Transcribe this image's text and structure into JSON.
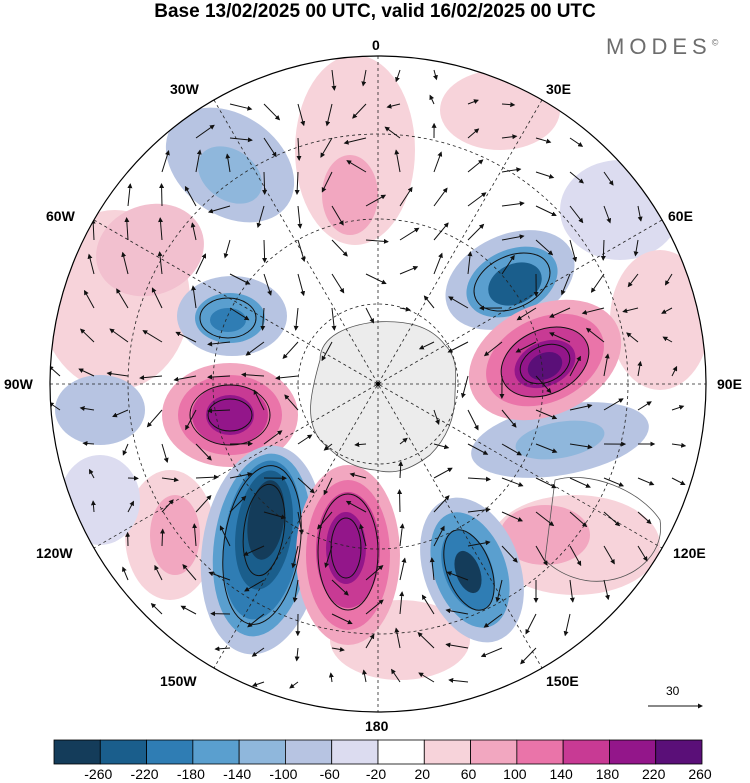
{
  "title": "Base 13/02/2025 00 UTC, valid 16/02/2025 00 UTC",
  "brand": "MODES",
  "brand_mark": "©",
  "longitude_labels": {
    "lon_0": "0",
    "lon_30e": "30E",
    "lon_60e": "60E",
    "lon_90e": "90E",
    "lon_120e": "120E",
    "lon_150e": "150E",
    "lon_180": "180",
    "lon_150w": "150W",
    "lon_120w": "120W",
    "lon_90w": "90W",
    "lon_60w": "60W",
    "lon_30w": "30W"
  },
  "reference_vector": {
    "label": "30"
  },
  "colorbar": {
    "ticks": [
      "-260",
      "-220",
      "-180",
      "-140",
      "-100",
      "-60",
      "-20",
      "20",
      "60",
      "100",
      "140",
      "180",
      "220",
      "260"
    ],
    "colors": [
      "#143c5a",
      "#1a5e8c",
      "#2f7db4",
      "#5a9fcf",
      "#8fb7dc",
      "#b7c4e2",
      "#dcdcf0",
      "#ffffff",
      "#f7d3da",
      "#f2a7c0",
      "#ea74a9",
      "#c83a94",
      "#93168a",
      "#5a0f78"
    ]
  }
}
